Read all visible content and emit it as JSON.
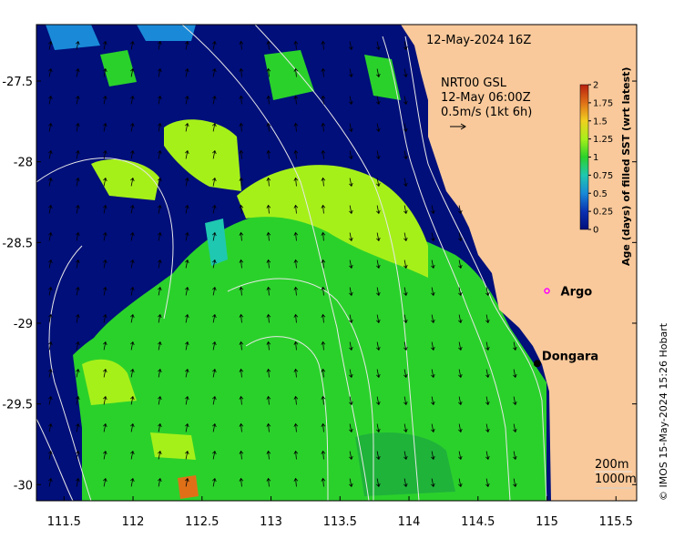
{
  "map": {
    "timestamp": "12-May-2024 16Z",
    "current_source": "NRT00 GSL",
    "current_time": "12-May 06:00Z",
    "arrow_scale_label": "0.5m/s (1kt 6h)",
    "lon_range": [
      111.3,
      115.65
    ],
    "lat_range": [
      -30.1,
      -27.15
    ],
    "x_ticks": [
      "111.5",
      "112",
      "112.5",
      "113",
      "113.5",
      "114",
      "114.5",
      "115",
      "115.5"
    ],
    "y_ticks": [
      "-27.5",
      "-28",
      "-28.5",
      "-29",
      "-29.5",
      "-30"
    ],
    "places": [
      {
        "name": "Argo",
        "lon": 115.0,
        "lat": -28.8,
        "marker": "argo-float"
      },
      {
        "name": "Dongara",
        "lon": 114.93,
        "lat": -29.25,
        "marker": "town"
      }
    ],
    "isobath_labels": [
      "200m",
      "1000m"
    ],
    "credit": "© IMOS 15-May-2024 15:26 Hobart",
    "colors": {
      "land": "#f9c99b",
      "age_0": "#000f7a",
      "age_0_5": "#1a8ad8",
      "age_1": "#2bd12b",
      "age_1_25": "#a6f01a",
      "age_1_5": "#f0d020",
      "age_2": "#b82010",
      "argo_marker": "#ff00ff"
    }
  },
  "colorbar": {
    "title": "Age (days) of filled SST (wrt latest)",
    "ticks": [
      "0",
      "0.25",
      "0.5",
      "0.75",
      "1",
      "1.25",
      "1.5",
      "1.75",
      "2"
    ],
    "range": [
      0,
      2
    ]
  }
}
